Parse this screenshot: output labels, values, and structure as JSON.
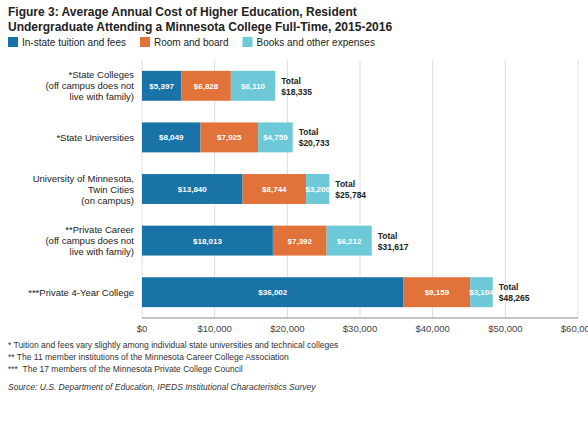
{
  "chart_data": {
    "type": "bar",
    "orientation": "horizontal",
    "stacked": true,
    "data_labels": true,
    "grid": true,
    "legend": "top",
    "title": "Figure 3: Average Annual Cost of Higher Education, Resident",
    "subtitle": "Undergraduate Attending a Minnesota College Full-Time, 2015-2016",
    "categories": [
      "*State Colleges\n(off campus does not\nlive with family)",
      "*State Universities",
      "University of Minnesota,\nTwin Cities\n(on campus)",
      "**Private Career\n(off campus does not\nlive with family)",
      "***Private 4-Year College"
    ],
    "series": [
      {
        "name": "In-state tuition and fees",
        "color": "#1a73a7",
        "values": [
          5397,
          8049,
          13840,
          18013,
          36002
        ],
        "value_labels": [
          "$5,397",
          "$8,049",
          "$13,840",
          "$18,013",
          "$36,002"
        ]
      },
      {
        "name": "Room and board",
        "color": "#e0723a",
        "values": [
          6828,
          7925,
          8744,
          7392,
          9159
        ],
        "value_labels": [
          "$6,828",
          "$7,925",
          "$8,744",
          "$7,392",
          "$9,159"
        ]
      },
      {
        "name": "Books and other expenses",
        "color": "#6dc8d8",
        "values": [
          6110,
          4759,
          3200,
          6212,
          3104
        ],
        "value_labels": [
          "$6,110",
          "$4,759",
          "$3,200",
          "$6,212",
          "$3,104"
        ]
      }
    ],
    "totals": {
      "label": "Total",
      "values": [
        18335,
        20733,
        25784,
        31617,
        48265
      ],
      "value_labels": [
        "$18,335",
        "$20,733",
        "$25,784",
        "$31,617",
        "$48,265"
      ]
    },
    "xlim": [
      0,
      60000
    ],
    "xticks": [
      {
        "value": 0,
        "label": "$0"
      },
      {
        "value": 10000,
        "label": "$10,000"
      },
      {
        "value": 20000,
        "label": "$20,000"
      },
      {
        "value": 30000,
        "label": "$30,000"
      },
      {
        "value": 40000,
        "label": "$40,000"
      },
      {
        "value": 50000,
        "label": "$50,000"
      },
      {
        "value": 60000,
        "label": "$60,000"
      }
    ],
    "footnotes": [
      "* Tuition and fees vary slightly among individual state universities and technical colleges",
      "** The 11 member institutions of the Minnesota Career College Association",
      "***  The 17 members of the Minnesota Private College Council"
    ],
    "source": "Source: U.S. Department of Education, IPEDS Institutional Characteristics Survey"
  }
}
